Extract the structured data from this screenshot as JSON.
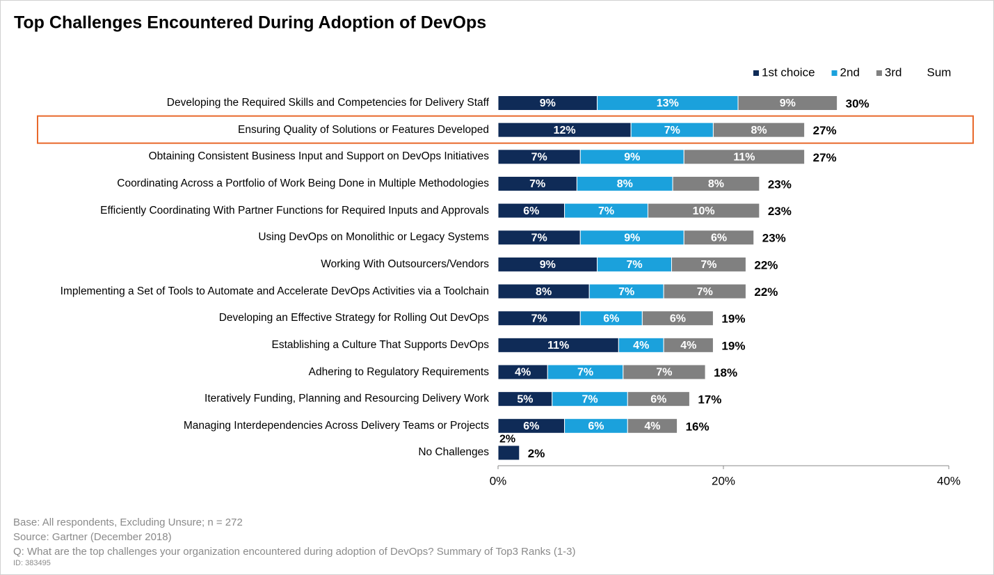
{
  "chart_data": {
    "type": "stacked-bar",
    "orientation": "horizontal",
    "title": "Top Challenges Encountered During Adoption of DevOps",
    "categories": [
      "Developing the Required Skills and Competencies for Delivery Staff",
      "Ensuring Quality of Solutions or Features Developed",
      "Obtaining Consistent Business Input and Support on DevOps Initiatives",
      "Coordinating Across a Portfolio of Work Being Done in Multiple Methodologies",
      "Efficiently Coordinating With Partner Functions for Required Inputs and Approvals",
      "Using DevOps on Monolithic or Legacy Systems",
      "Working With Outsourcers/Vendors",
      "Implementing a Set of Tools to Automate and Accelerate DevOps Activities via a Toolchain",
      "Developing an Effective Strategy for Rolling Out DevOps",
      "Establishing a Culture That Supports DevOps",
      "Adhering to Regulatory Requirements",
      "Iteratively Funding, Planning and Resourcing Delivery Work",
      "Managing Interdependencies Across Delivery Teams or Projects",
      "No Challenges"
    ],
    "series": [
      {
        "name": "1st choice",
        "color": "#0f2b57",
        "values": [
          8.8,
          11.8,
          7.3,
          7.0,
          5.9,
          7.3,
          8.8,
          8.1,
          7.3,
          10.7,
          4.4,
          4.8,
          5.9,
          1.9
        ],
        "value_labels": [
          "9%",
          "12%",
          "7%",
          "7%",
          "6%",
          "7%",
          "9%",
          "8%",
          "7%",
          "11%",
          "4%",
          "5%",
          "6%",
          "2%"
        ]
      },
      {
        "name": "2nd",
        "color": "#1ba1dc",
        "values": [
          12.5,
          7.3,
          9.2,
          8.5,
          7.4,
          9.2,
          6.6,
          6.6,
          5.5,
          4.0,
          6.7,
          6.7,
          5.6,
          null
        ],
        "value_labels": [
          "13%",
          "7%",
          "9%",
          "8%",
          "7%",
          "9%",
          "7%",
          "7%",
          "6%",
          "4%",
          "7%",
          "7%",
          "6%",
          null
        ]
      },
      {
        "name": "3rd",
        "color": "#808080",
        "values": [
          8.8,
          8.1,
          10.7,
          7.7,
          9.9,
          6.2,
          6.6,
          7.3,
          6.3,
          4.4,
          7.3,
          5.5,
          4.4,
          null
        ],
        "value_labels": [
          "9%",
          "8%",
          "11%",
          "8%",
          "10%",
          "6%",
          "7%",
          "7%",
          "6%",
          "4%",
          "7%",
          "6%",
          "4%",
          null
        ]
      },
      {
        "name": "Sum",
        "values": [
          30,
          27,
          27,
          23,
          23,
          23,
          22,
          22,
          19,
          19,
          18,
          17,
          16,
          2
        ],
        "value_labels": [
          "30%",
          "27%",
          "27%",
          "23%",
          "23%",
          "23%",
          "22%",
          "22%",
          "19%",
          "19%",
          "18%",
          "17%",
          "16%",
          "2%"
        ]
      }
    ],
    "xlim": [
      0,
      40
    ],
    "xticks": [
      {
        "value": 0,
        "label": "0%"
      },
      {
        "value": 20,
        "label": "20%"
      },
      {
        "value": 40,
        "label": "40%"
      }
    ],
    "highlight_category": 1,
    "legend": "top-right",
    "notes": [
      "Base: All respondents, Excluding Unsure; n = 272",
      "Source: Gartner (December 2018)",
      "Q: What are the top challenges your organization encountered during adoption of DevOps? Summary of Top3 Ranks (1-3)"
    ],
    "id_note": "ID: 383495"
  }
}
